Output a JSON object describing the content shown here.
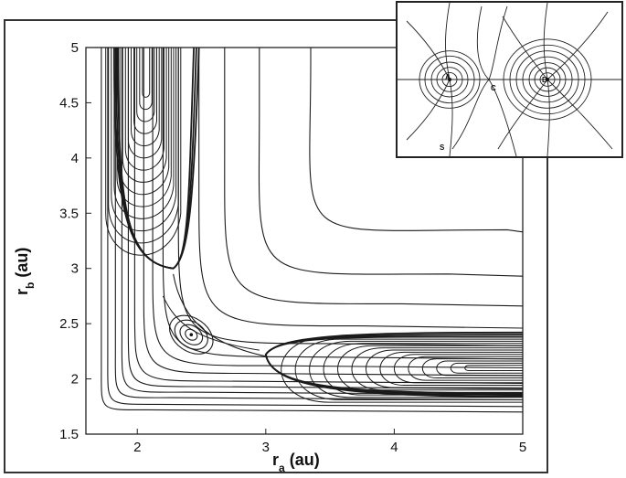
{
  "figure": {
    "xlabel": {
      "main": "r",
      "sub": "a",
      "unit": " (au)"
    },
    "ylabel": {
      "main": "r",
      "sub": "b",
      "unit": " (au)"
    },
    "xlim": [
      1.6,
      5.0
    ],
    "ylim": [
      1.5,
      5.0
    ],
    "xticks": [
      "2",
      "3",
      "4",
      "5"
    ],
    "yticks": [
      "1.5",
      "2",
      "2.5",
      "3",
      "3.5",
      "4",
      "4.5",
      "5"
    ],
    "critical_points": [
      {
        "type": "maximum-point",
        "x": 2.42,
        "y": 2.4
      }
    ],
    "line_color": "#1a1a1a",
    "contour_families": [
      {
        "name": "reactant-valley",
        "description": "nested U-shaped contours open toward top"
      },
      {
        "name": "product-valley",
        "description": "nested U-shaped contours open toward right"
      },
      {
        "name": "l-shaped-outer",
        "description": "L-shaped contours around both valleys"
      },
      {
        "name": "saddle-loops",
        "description": "closed loops around central maximum"
      }
    ]
  },
  "inset": {
    "labels": {
      "left_center": "A",
      "right_center": "B",
      "saddle": "C",
      "path": "S"
    }
  }
}
